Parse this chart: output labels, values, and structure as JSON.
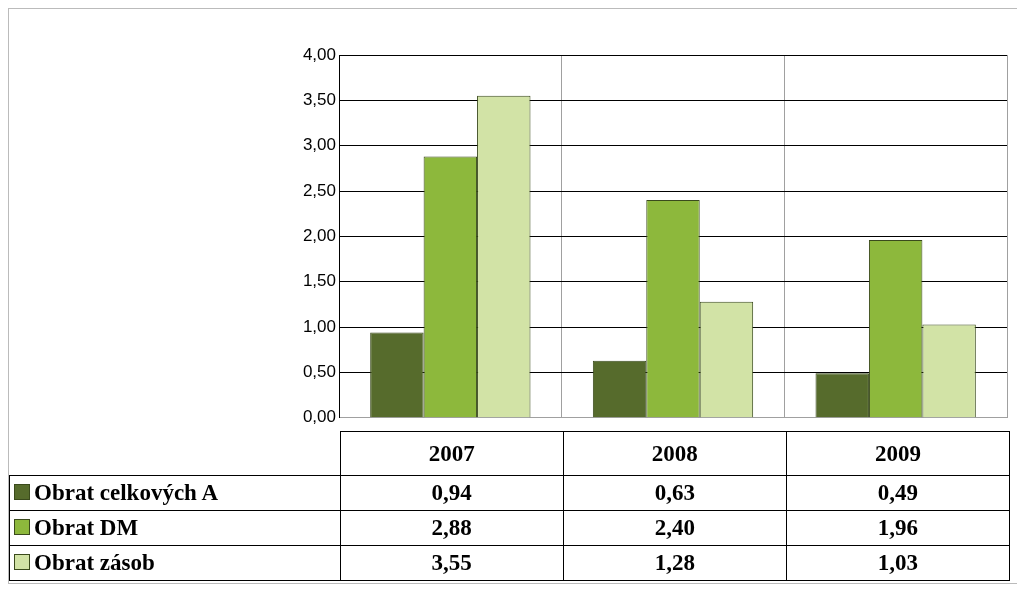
{
  "chart_data": {
    "type": "bar",
    "categories": [
      "2007",
      "2008",
      "2009"
    ],
    "series": [
      {
        "name": "Obrat celkových A",
        "color": "#566b2c",
        "values": [
          0.94,
          0.63,
          0.49
        ],
        "value_labels": [
          "0,94",
          "0,63",
          "0,49"
        ]
      },
      {
        "name": "Obrat DM",
        "color": "#8db83c",
        "values": [
          2.88,
          2.4,
          1.96
        ],
        "value_labels": [
          "2,88",
          "2,40",
          "1,96"
        ]
      },
      {
        "name": "Obrat zásob",
        "color": "#d2e3a6",
        "values": [
          3.55,
          1.28,
          1.03
        ],
        "value_labels": [
          "3,55",
          "1,28",
          "1,03"
        ]
      }
    ],
    "ylim": [
      0,
      4
    ],
    "yticks": [
      {
        "value": 0,
        "label": "0,00"
      },
      {
        "value": 0.5,
        "label": "0,50"
      },
      {
        "value": 1,
        "label": "1,00"
      },
      {
        "value": 1.5,
        "label": "1,50"
      },
      {
        "value": 2,
        "label": "2,00"
      },
      {
        "value": 2.5,
        "label": "2,50"
      },
      {
        "value": 3,
        "label": "3,00"
      },
      {
        "value": 3.5,
        "label": "3,50"
      },
      {
        "value": 4,
        "label": "4,00"
      }
    ],
    "grid": true,
    "legend": "bottom",
    "tick_labels": "y"
  }
}
